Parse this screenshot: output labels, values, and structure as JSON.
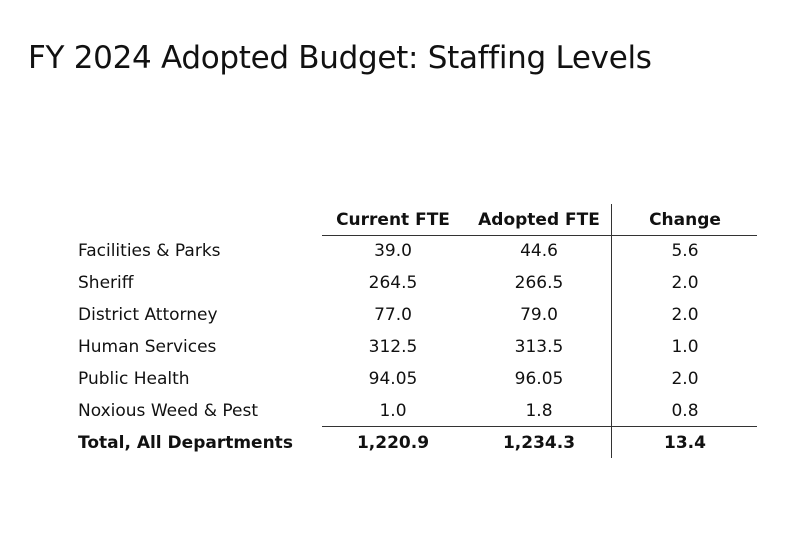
{
  "header": {
    "title": "FY 2024 Adopted Budget: Staffing Levels"
  },
  "table": {
    "columns": [
      "Current FTE",
      "Adopted FTE",
      "Change"
    ],
    "rows": [
      [
        "Facilities & Parks",
        "39.0",
        "44.6",
        "5.6"
      ],
      [
        "Sheriff",
        "264.5",
        "266.5",
        "2.0"
      ],
      [
        "District Attorney",
        "77.0",
        "79.0",
        "2.0"
      ],
      [
        "Human Services",
        "312.5",
        "313.5",
        "1.0"
      ],
      [
        "Public Health",
        "94.05",
        "96.05",
        "2.0"
      ],
      [
        "Noxious Weed & Pest",
        "1.0",
        "1.8",
        "0.8"
      ]
    ],
    "total": [
      "Total, All Departments",
      "1,220.9",
      "1,234.3",
      "13.4"
    ]
  }
}
